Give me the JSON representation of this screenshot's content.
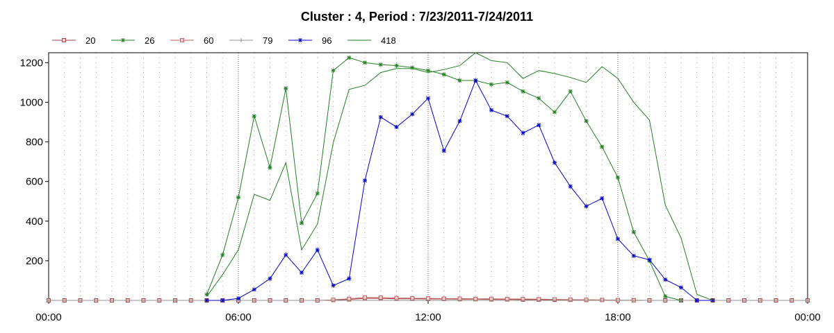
{
  "chart_data": {
    "type": "line",
    "title": "Cluster : 4, Period : 7/23/2011-7/24/2011",
    "xlabel": "",
    "ylabel": "",
    "x_unit": "hours",
    "xlim": [
      0,
      24
    ],
    "ylim": [
      0,
      1250
    ],
    "x_ticks": [
      {
        "value": 0,
        "label": "00:00"
      },
      {
        "value": 6,
        "label": "06:00"
      },
      {
        "value": 12,
        "label": "12:00"
      },
      {
        "value": 18,
        "label": "18:00"
      },
      {
        "value": 24,
        "label": "00:00"
      }
    ],
    "y_ticks": [
      200,
      400,
      600,
      800,
      1000,
      1200
    ],
    "grid": "vertical dotted at each half hour",
    "legend_position": "top-left",
    "series": [
      {
        "name": "20",
        "color": "#a04040",
        "marker": "square",
        "x": [
          0,
          0.5,
          1,
          1.5,
          2,
          2.5,
          3,
          3.5,
          4,
          4.5,
          5,
          5.5,
          6,
          6.5,
          7,
          7.5,
          8,
          8.5,
          9,
          9.5,
          10,
          10.5,
          11,
          11.5,
          12,
          12.5,
          13,
          13.5,
          14,
          14.5,
          15,
          15.5,
          16,
          16.5,
          17,
          17.5,
          18,
          18.5,
          19,
          19.5,
          20,
          20.5,
          21,
          21.5,
          22,
          22.5,
          23,
          23.5,
          24
        ],
        "y": [
          0,
          0,
          0,
          0,
          0,
          0,
          0,
          0,
          0,
          0,
          0,
          0,
          0,
          0,
          0,
          0,
          0,
          0,
          2,
          5,
          10,
          10,
          8,
          8,
          7,
          7,
          6,
          6,
          5,
          5,
          4,
          4,
          3,
          3,
          2,
          2,
          1,
          1,
          0,
          0,
          0,
          0,
          0,
          0,
          0,
          0,
          0,
          0,
          0
        ]
      },
      {
        "name": "26",
        "color": "#208020",
        "marker": "asterisk",
        "x": [
          5,
          5.5,
          6,
          6.5,
          7,
          7.5,
          8,
          8.5,
          9,
          9.5,
          10,
          10.5,
          11,
          11.5,
          12,
          12.5,
          13,
          13.5,
          14,
          14.5,
          15,
          15.5,
          16,
          16.5,
          17,
          17.5,
          18,
          18.5,
          19,
          19.5,
          20
        ],
        "y": [
          30,
          230,
          520,
          930,
          670,
          1070,
          390,
          540,
          1160,
          1225,
          1200,
          1190,
          1185,
          1175,
          1160,
          1140,
          1110,
          1110,
          1090,
          1100,
          1055,
          1020,
          950,
          1055,
          905,
          775,
          620,
          345,
          200,
          20,
          0
        ]
      },
      {
        "name": "60",
        "color": "#c06060",
        "marker": "square",
        "x": [
          9,
          9.5,
          10,
          10.5,
          11,
          11.5,
          12,
          12.5,
          13,
          13.5,
          14,
          14.5,
          15,
          15.5,
          16,
          16.5,
          17,
          17.5,
          18
        ],
        "y": [
          3,
          8,
          15,
          14,
          12,
          11,
          10,
          9,
          9,
          8,
          8,
          7,
          7,
          6,
          5,
          4,
          3,
          2,
          1
        ]
      },
      {
        "name": "79",
        "color": "#909090",
        "marker": "plus",
        "x": [
          0,
          4,
          5,
          20,
          21,
          24
        ],
        "y": [
          0,
          0,
          0,
          0,
          0,
          0
        ]
      },
      {
        "name": "96",
        "color": "#0000cc",
        "marker": "asterisk",
        "x": [
          5,
          5.5,
          6,
          6.5,
          7,
          7.5,
          8,
          8.5,
          9,
          9.5,
          10,
          10.5,
          11,
          11.5,
          12,
          12.5,
          13,
          13.5,
          14,
          14.5,
          15,
          15.5,
          16,
          16.5,
          17,
          17.5,
          18,
          18.5,
          19,
          19.5,
          20,
          20.5,
          21
        ],
        "y": [
          0,
          0,
          10,
          55,
          110,
          230,
          140,
          255,
          75,
          110,
          605,
          925,
          875,
          940,
          1020,
          755,
          905,
          1110,
          960,
          930,
          845,
          885,
          695,
          575,
          475,
          515,
          310,
          225,
          205,
          105,
          65,
          0,
          0
        ]
      },
      {
        "name": "418",
        "color": "#208020",
        "marker": "none",
        "x": [
          5,
          5.5,
          6,
          6.5,
          7,
          7.5,
          8,
          8.5,
          9,
          9.5,
          10,
          10.5,
          11,
          11.5,
          12,
          12.5,
          13,
          13.5,
          14,
          14.5,
          15,
          15.5,
          16,
          16.5,
          17,
          17.5,
          18,
          18.5,
          19,
          19.5,
          20,
          20.5,
          21
        ],
        "y": [
          20,
          130,
          255,
          535,
          505,
          695,
          255,
          385,
          795,
          1065,
          1085,
          1150,
          1170,
          1170,
          1150,
          1165,
          1185,
          1250,
          1210,
          1200,
          1120,
          1160,
          1145,
          1125,
          1100,
          1180,
          1120,
          1000,
          910,
          480,
          315,
          30,
          0
        ]
      }
    ]
  }
}
